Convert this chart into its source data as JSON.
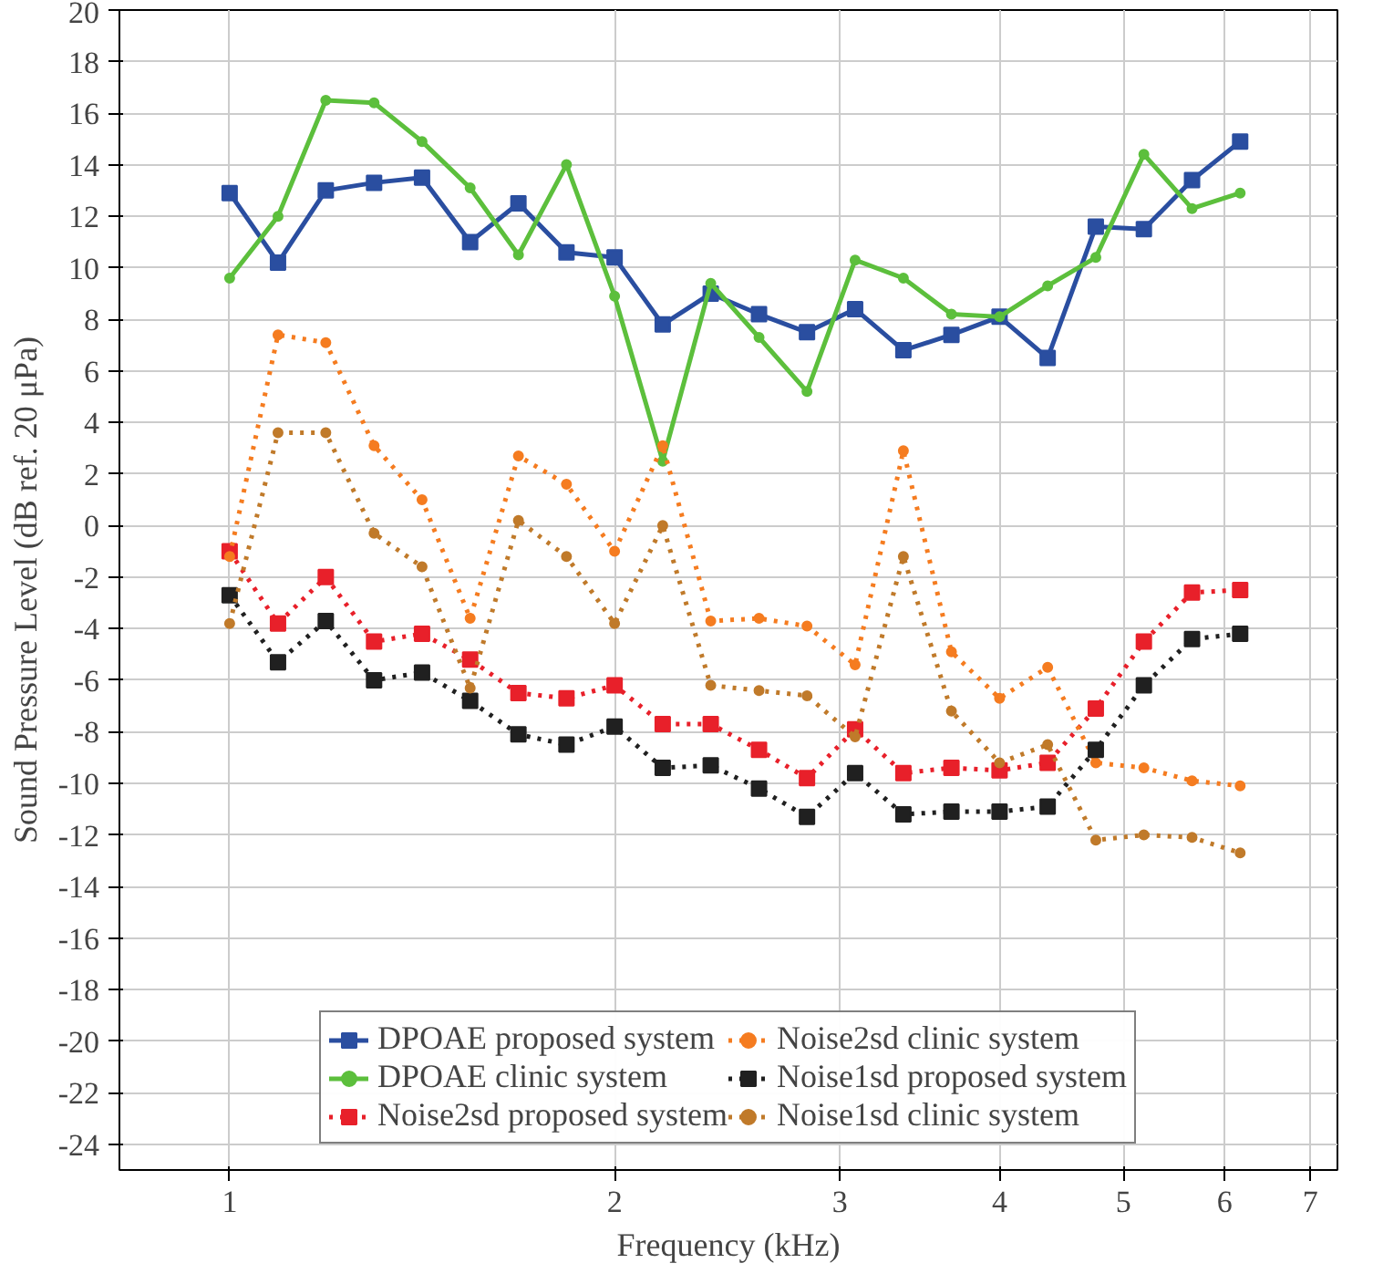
{
  "chart_data": {
    "type": "line",
    "xlabel": "Frequency (kHz)",
    "ylabel": "Sound Pressure Level (dB ref. 20 μPa)",
    "log": "x",
    "grid": true,
    "legend": "bottom",
    "xlim": [
      0.82,
      7.35
    ],
    "xticks": [
      1,
      2,
      3,
      4,
      5,
      6,
      7
    ],
    "ylim": [
      -25,
      20
    ],
    "yticks": [
      -24,
      -22,
      -20,
      -18,
      -16,
      -14,
      -12,
      -10,
      -8,
      -6,
      -4,
      -2,
      0,
      2,
      4,
      6,
      8,
      10,
      12,
      14,
      16,
      18,
      20
    ],
    "x": [
      1,
      1.091,
      1.189,
      1.297,
      1.414,
      1.542,
      1.682,
      1.834,
      2,
      2.181,
      2.378,
      2.594,
      2.828,
      3.084,
      3.364,
      3.668,
      4,
      4.362,
      4.757,
      5.187,
      5.657,
      6.169
    ],
    "series": [
      {
        "name": "DPOAE proposed system",
        "color": "#2a4ea0",
        "marker": "square",
        "line_style": "solid",
        "values": [
          12.9,
          10.2,
          13.0,
          13.3,
          13.5,
          11.0,
          12.5,
          10.6,
          10.4,
          7.8,
          9.0,
          8.2,
          7.5,
          8.4,
          6.8,
          7.4,
          8.1,
          6.5,
          11.6,
          11.5,
          13.4,
          14.9
        ]
      },
      {
        "name": "DPOAE clinic system",
        "color": "#5cbf3c",
        "marker": "circle",
        "line_style": "solid",
        "values": [
          9.6,
          12.0,
          16.5,
          16.4,
          14.9,
          13.1,
          10.5,
          14.0,
          8.9,
          2.5,
          9.4,
          7.3,
          5.2,
          10.3,
          9.6,
          8.2,
          8.1,
          9.3,
          10.4,
          14.4,
          12.3,
          12.9
        ]
      },
      {
        "name": "Noise2sd proposed system",
        "color": "#e8202a",
        "marker": "square",
        "line_style": "dotted",
        "values": [
          -1.0,
          -3.8,
          -2.0,
          -4.5,
          -4.2,
          -5.2,
          -6.5,
          -6.7,
          -6.2,
          -7.7,
          -7.7,
          -8.7,
          -9.8,
          -7.9,
          -9.6,
          -9.4,
          -9.5,
          -9.2,
          -7.1,
          -4.5,
          -2.6,
          -2.5
        ]
      },
      {
        "name": "Noise2sd clinic system",
        "color": "#f57c20",
        "marker": "circle",
        "line_style": "dotted",
        "values": [
          -1.2,
          7.4,
          7.1,
          3.1,
          1.0,
          -3.6,
          2.7,
          1.6,
          -1.0,
          3.1,
          -3.7,
          -3.6,
          -3.9,
          -5.4,
          2.9,
          -4.9,
          -6.7,
          -5.5,
          -9.2,
          -9.4,
          -9.9,
          -10.1
        ]
      },
      {
        "name": "Noise1sd proposed system",
        "color": "#202020",
        "marker": "square",
        "line_style": "dotted",
        "values": [
          -2.7,
          -5.3,
          -3.7,
          -6.0,
          -5.7,
          -6.8,
          -8.1,
          -8.5,
          -7.8,
          -9.4,
          -9.3,
          -10.2,
          -11.3,
          -9.6,
          -11.2,
          -11.1,
          -11.1,
          -10.9,
          -8.7,
          -6.2,
          -4.4,
          -4.2
        ]
      },
      {
        "name": "Noise1sd clinic system",
        "color": "#c07a2a",
        "marker": "circle",
        "line_style": "dotted",
        "values": [
          -3.8,
          3.6,
          3.6,
          -0.3,
          -1.6,
          -6.3,
          0.2,
          -1.2,
          -3.8,
          0.0,
          -6.2,
          -6.4,
          -6.6,
          -8.2,
          -1.2,
          -7.2,
          -9.2,
          -8.5,
          -12.2,
          -12.0,
          -12.1,
          -12.7
        ]
      }
    ]
  }
}
